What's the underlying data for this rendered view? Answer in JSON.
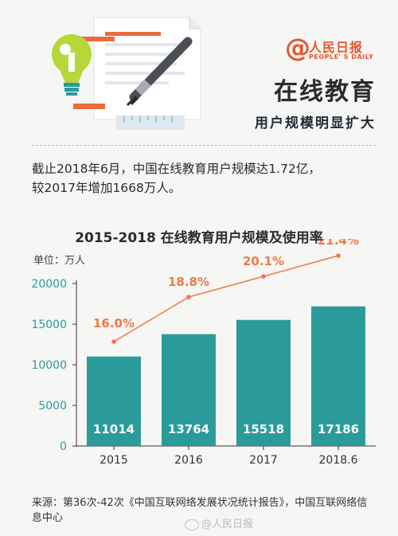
{
  "brand": {
    "at_symbol": "@",
    "name_cn": "人民日报",
    "name_en": "PEOPLE' S DAILY"
  },
  "header": {
    "title": "在线教育",
    "subtitle": "用户规模明显扩大"
  },
  "intro": {
    "line1": "截止2018年6月，中国在线教育用户规模达1.72亿，",
    "line2": "较2017年增加1668万人。"
  },
  "chart": {
    "unit_label": "单位：万人"
  },
  "source": "来源：第36次-42次《中国互联网络发展状况统计报告》，中国互联网络信息中心",
  "watermark": "@人民日报",
  "colors": {
    "bar": "#2a9b9a",
    "line": "#ef7a45",
    "accent": "#e8552e",
    "text": "#2b2b2b"
  },
  "chart_data": {
    "type": "bar",
    "title": "2015-2018  在线教育用户规模及使用率",
    "categories": [
      "2015",
      "2016",
      "2017",
      "2018.6"
    ],
    "series": [
      {
        "values": [
          11014,
          13764,
          15518,
          17186
        ],
        "labels": [
          "11014",
          "13764",
          "15518",
          "17186"
        ]
      },
      {
        "values": [
          16.0,
          18.8,
          20.1,
          21.4
        ],
        "labels": [
          "16.0%",
          "18.8%",
          "20.1%",
          "21.4%"
        ]
      }
    ],
    "ylim": [
      0,
      20000
    ],
    "yticks": [
      0,
      5000,
      10000,
      15000,
      20000
    ],
    "ytick_labels": [
      "0",
      "5000",
      "10000",
      "15000",
      "20000"
    ],
    "grid": false,
    "legend": "none"
  }
}
